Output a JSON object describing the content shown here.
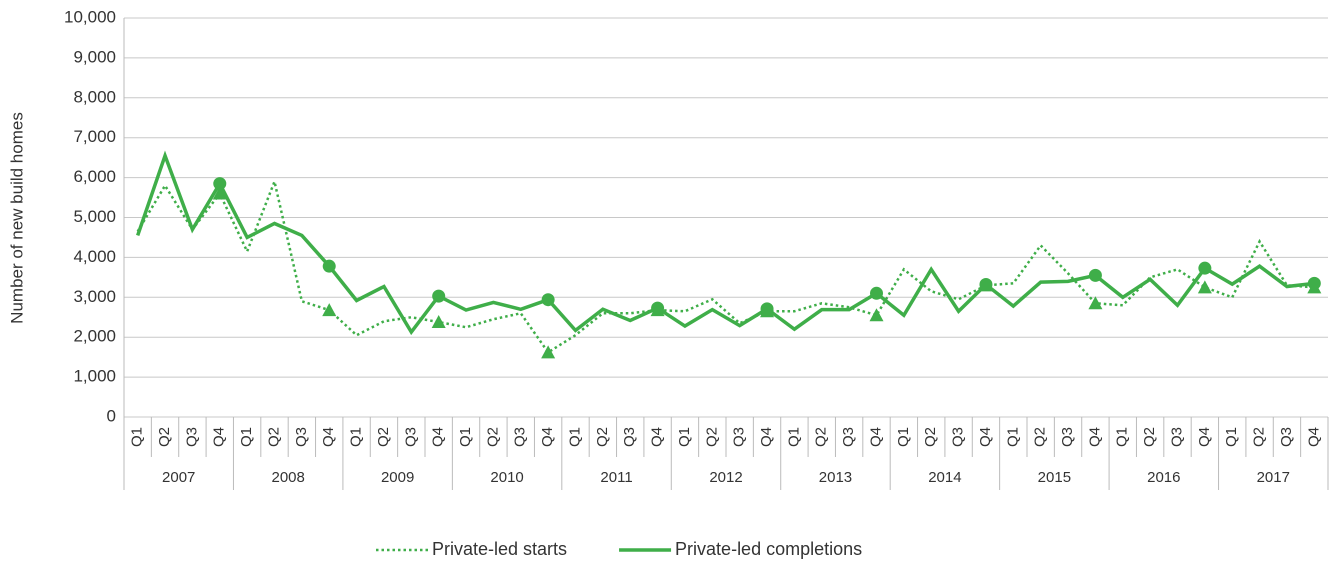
{
  "chart_data": {
    "type": "line",
    "y_label": "Number of new build homes",
    "categories": [
      "Q1",
      "Q2",
      "Q3",
      "Q4",
      "Q1",
      "Q2",
      "Q3",
      "Q4",
      "Q1",
      "Q2",
      "Q3",
      "Q4",
      "Q1",
      "Q2",
      "Q3",
      "Q4",
      "Q1",
      "Q2",
      "Q3",
      "Q4",
      "Q1",
      "Q2",
      "Q3",
      "Q4",
      "Q1",
      "Q2",
      "Q3",
      "Q4",
      "Q1",
      "Q2",
      "Q3",
      "Q4",
      "Q1",
      "Q2",
      "Q3",
      "Q4",
      "Q1",
      "Q2",
      "Q3",
      "Q4",
      "Q1",
      "Q2",
      "Q3",
      "Q4"
    ],
    "category_groups": [
      "2007",
      "2008",
      "2009",
      "2010",
      "2011",
      "2012",
      "2013",
      "2014",
      "2015",
      "2016",
      "2017"
    ],
    "series": [
      {
        "name": "Private-led starts",
        "color": "#3fae49",
        "dash": "dotted",
        "marker": "triangle",
        "values": [
          4650,
          5800,
          4700,
          5600,
          4150,
          5900,
          2900,
          2680,
          2050,
          2400,
          2500,
          2380,
          2250,
          2450,
          2600,
          1620,
          2050,
          2600,
          2600,
          2680,
          2650,
          2950,
          2350,
          2650,
          2650,
          2850,
          2750,
          2550,
          3700,
          3150,
          2950,
          3300,
          3350,
          4300,
          3600,
          2850,
          2800,
          3500,
          3700,
          3250,
          3000,
          4400,
          3300,
          3250
        ]
      },
      {
        "name": "Private-led completions",
        "color": "#3fae49",
        "dash": "solid",
        "marker": "circle",
        "values": [
          4550,
          6550,
          4700,
          5850,
          4500,
          4850,
          4550,
          3780,
          2920,
          3270,
          2130,
          3030,
          2680,
          2870,
          2700,
          2940,
          2170,
          2700,
          2420,
          2730,
          2280,
          2690,
          2290,
          2710,
          2200,
          2690,
          2690,
          3100,
          2550,
          3700,
          2650,
          3320,
          2780,
          3380,
          3400,
          3550,
          3000,
          3450,
          2800,
          3730,
          3330,
          3780,
          3270,
          3350
        ]
      }
    ],
    "ylim": [
      0,
      10000
    ],
    "yticks": [
      0,
      {
        "value": 1000,
        "label": "1,000"
      },
      {
        "value": 2000,
        "label": "2,000"
      },
      {
        "value": 3000,
        "label": "3,000"
      },
      {
        "value": 4000,
        "label": "4,000"
      },
      {
        "value": 5000,
        "label": "5,000"
      },
      {
        "value": 6000,
        "label": "6,000"
      },
      {
        "value": 7000,
        "label": "7,000"
      },
      {
        "value": 8000,
        "label": "8,000"
      },
      {
        "value": 9000,
        "label": "9,000"
      },
      {
        "value": 10000,
        "label": "10,000"
      }
    ],
    "grid": true,
    "legend": "bottom"
  }
}
